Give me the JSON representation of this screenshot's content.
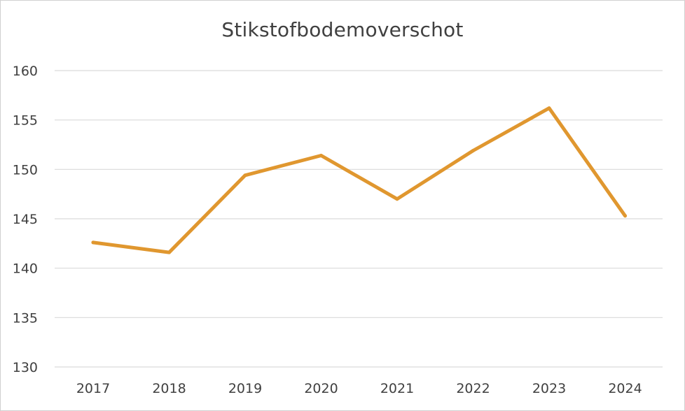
{
  "chart_data": {
    "type": "line",
    "title": "Stikstofbodemoverschot",
    "xlabel": "",
    "ylabel": "",
    "categories": [
      "2017",
      "2018",
      "2019",
      "2020",
      "2021",
      "2022",
      "2023",
      "2024"
    ],
    "series": [
      {
        "values": [
          142.6,
          141.6,
          149.4,
          151.4,
          147.0,
          151.9,
          156.2,
          145.3
        ],
        "color": "#E0972F"
      }
    ],
    "y_ticks": [
      "130",
      "135",
      "140",
      "145",
      "150",
      "155",
      "160"
    ],
    "ylim": [
      130,
      160
    ],
    "grid": true,
    "legend": "none"
  }
}
